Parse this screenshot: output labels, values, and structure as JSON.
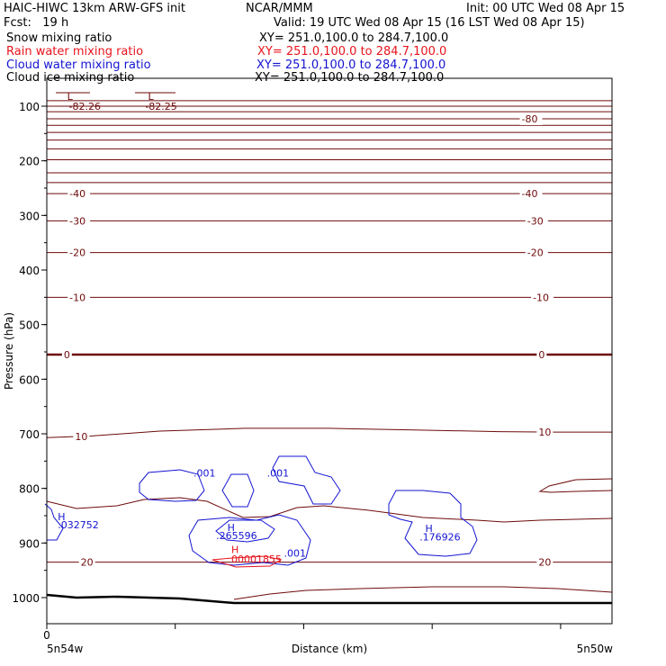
{
  "header": {
    "title_left": "HAIC-HIWC 13km ARW-GFS init",
    "center_label": "NCAR/MMM",
    "init_label": "Init: 00 UTC Wed 08 Apr 15",
    "fcst_label": "Fcst:   19 h",
    "valid_label": "Valid: 19 UTC Wed 08 Apr 15 (16 LST Wed 08 Apr 15)"
  },
  "fields": [
    {
      "name": "Snow mixing ratio",
      "xy": "XY= 251.0,100.0 to 284.7,100.0",
      "color": "#000000"
    },
    {
      "name": "Rain water mixing ratio",
      "xy": "XY= 251.0,100.0 to 284.7,100.0",
      "color": "#e8141c"
    },
    {
      "name": "Cloud water mixing ratio",
      "xy": "XY= 251.0,100.0 to 284.7,100.0",
      "color": "#1414d2"
    },
    {
      "name": "Cloud ice mixing ratio",
      "xy": "XY= 251.0,100.0 to 284.7,100.0",
      "color": "#000000"
    }
  ],
  "chart_data": {
    "type": "line",
    "ylabel": "Pressure (hPa)",
    "xlabel": "Distance (km)",
    "x_start_label": "5n54w",
    "x_end_label": "5n50w",
    "x_zero_label": "0",
    "yticks": [
      100,
      200,
      300,
      400,
      500,
      600,
      700,
      800,
      900,
      1000
    ],
    "ylim": [
      1050,
      70
    ],
    "xlim": [
      0,
      1
    ],
    "colors": {
      "temperature": "#6e0a0a",
      "cloud_water": "#1414d2",
      "rain": "#e8141c",
      "terrain": "#000000"
    },
    "temperature_contours": [
      {
        "level": -80,
        "x": [
          0,
          1
        ],
        "p": [
          123,
          123
        ],
        "label": "-80",
        "label_x": [
          0.84
        ]
      },
      {
        "level": -40,
        "x": [
          0,
          1
        ],
        "p": [
          260,
          260
        ],
        "label": "-40",
        "label_x": [
          0.04,
          0.84
        ]
      },
      {
        "level": -30,
        "x": [
          0,
          1
        ],
        "p": [
          310,
          310
        ],
        "label": "-30",
        "label_x": [
          0.04,
          0.85
        ]
      },
      {
        "level": -20,
        "x": [
          0,
          1
        ],
        "p": [
          368,
          368
        ],
        "label": "-20",
        "label_x": [
          0.04,
          0.85
        ]
      },
      {
        "level": -10,
        "x": [
          0,
          1
        ],
        "p": [
          450,
          450
        ],
        "label": "-10",
        "label_x": [
          0.04,
          0.86
        ]
      },
      {
        "level": 0,
        "x": [
          0,
          1
        ],
        "p": [
          555,
          555
        ],
        "label": "0",
        "label_x": [
          0.03,
          0.87
        ],
        "bold": true
      },
      {
        "level": 10,
        "x": [
          0,
          0.08,
          0.2,
          0.35,
          0.5,
          0.65,
          0.8,
          0.9,
          1
        ],
        "p": [
          707,
          704,
          695,
          690,
          690,
          693,
          696,
          697,
          697
        ],
        "label": "10",
        "label_x": [
          0.05,
          0.87
        ]
      },
      {
        "level": 20,
        "x": [
          0,
          1
        ],
        "p": [
          935,
          935
        ],
        "label": "20",
        "label_x": [
          0.06,
          0.87
        ]
      }
    ],
    "extra_isotherms_p": [
      90,
      100,
      110,
      135,
      148,
      162,
      178,
      198,
      222,
      240
    ],
    "cloud_water_labels": [
      {
        "text": ".001",
        "x": 0.25,
        "p": 778
      },
      {
        "text": ".001",
        "x": 0.38,
        "p": 778
      },
      {
        "text": "H",
        "x": 0.01,
        "p": 858
      },
      {
        "text": ".032752",
        "x": 0.01,
        "p": 873
      },
      {
        "text": "H",
        "x": 0.31,
        "p": 878
      },
      {
        "text": ".265596",
        "x": 0.29,
        "p": 893
      },
      {
        "text": "H",
        "x": 0.66,
        "p": 880
      },
      {
        "text": ".176926",
        "x": 0.65,
        "p": 895
      },
      {
        "text": ".001",
        "x": 0.41,
        "p": 925
      }
    ],
    "rain_labels": [
      {
        "text": "H",
        "x": 0.32,
        "p": 918
      },
      {
        "text": "00001855",
        "x": 0.32,
        "p": 936
      }
    ],
    "temperature_extrema": [
      {
        "text": "L",
        "x": 0.017,
        "p": 83
      },
      {
        "text": "-82.26",
        "x": 0.02,
        "p": 100
      },
      {
        "text": "L",
        "x": 0.16,
        "p": 83
      },
      {
        "text": "-82.25",
        "x": 0.155,
        "p": 100
      }
    ]
  }
}
